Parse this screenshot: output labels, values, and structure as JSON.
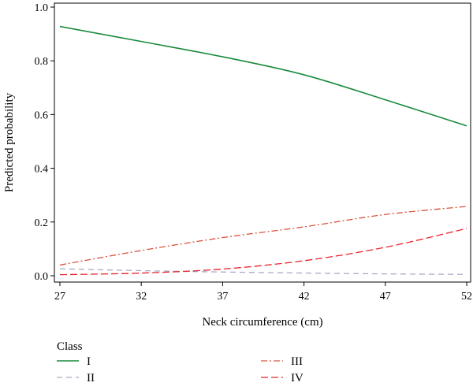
{
  "chart_data": {
    "type": "line",
    "xlabel": "Neck circumference (cm)",
    "ylabel": "Predicted probability",
    "xlim": [
      27,
      52
    ],
    "ylim": [
      0,
      1.0
    ],
    "x_ticks": [
      "27",
      "32",
      "37",
      "42",
      "47",
      "52"
    ],
    "y_ticks": [
      "0.0",
      "0.2",
      "0.4",
      "0.6",
      "0.8",
      "1.0"
    ],
    "grid": false,
    "legend": {
      "title": "Class",
      "placement": "bottom"
    },
    "series": [
      {
        "name": "I",
        "color": "#1a8a3c",
        "dash": "solid",
        "x": [
          27,
          32,
          37,
          42,
          47,
          52
        ],
        "y": [
          0.928,
          0.872,
          0.815,
          0.748,
          0.655,
          0.558
        ]
      },
      {
        "name": "II",
        "color": "#a9a9c8",
        "dash": "dashed",
        "x": [
          27,
          32,
          37,
          42,
          47,
          52
        ],
        "y": [
          0.026,
          0.019,
          0.014,
          0.01,
          0.007,
          0.005
        ]
      },
      {
        "name": "III",
        "color": "#d9543f",
        "dash": "dashdot",
        "x": [
          27,
          32,
          37,
          42,
          47,
          52
        ],
        "y": [
          0.04,
          0.094,
          0.142,
          0.182,
          0.228,
          0.258
        ]
      },
      {
        "name": "IV",
        "color": "#e8222b",
        "dash": "longdash",
        "x": [
          27,
          32,
          37,
          42,
          47,
          52
        ],
        "y": [
          0.004,
          0.01,
          0.025,
          0.056,
          0.106,
          0.176
        ]
      }
    ]
  }
}
